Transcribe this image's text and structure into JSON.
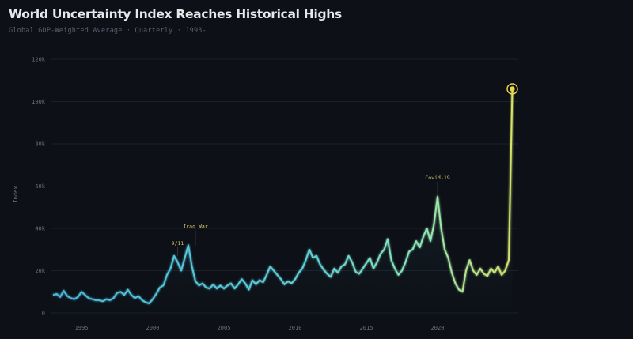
{
  "header": {
    "title": "World Uncertainty Index Reaches Historical Highs",
    "subtitle": "Global GDP-Weighted Average · Quarterly · 1993-"
  },
  "colors": {
    "background": "#0d1017",
    "grid": "#1c2029",
    "line_start": "#4fc3e0",
    "line_mid": "#7fe0c0",
    "line_end": "#d4e06a",
    "highlight": "#e8d84a",
    "annotation": "#d9c96a"
  },
  "chart_data": {
    "type": "line",
    "title": "World Uncertainty Index Reaches Historical Highs",
    "subtitle": "Global GDP-Weighted Average · Quarterly · 1993-",
    "xlabel": "",
    "ylabel": "Index",
    "ylim": [
      0,
      120000
    ],
    "xlim": [
      1993,
      2025.5
    ],
    "grid": true,
    "legend": null,
    "yticks": [
      {
        "value": 0,
        "label": "0"
      },
      {
        "value": 20000,
        "label": "20k"
      },
      {
        "value": 40000,
        "label": "40k"
      },
      {
        "value": 60000,
        "label": "60k"
      },
      {
        "value": 80000,
        "label": "80k"
      },
      {
        "value": 100000,
        "label": "100k"
      },
      {
        "value": 120000,
        "label": "120k"
      }
    ],
    "xticks": [
      {
        "value": 1995,
        "label": "1995"
      },
      {
        "value": 2000,
        "label": "2000"
      },
      {
        "value": 2005,
        "label": "2005"
      },
      {
        "value": 2010,
        "label": "2010"
      },
      {
        "value": 2015,
        "label": "2015"
      },
      {
        "value": 2020,
        "label": "2020"
      }
    ],
    "annotations": [
      {
        "label": "9/11",
        "x": 2001.75,
        "y": 27000
      },
      {
        "label": "Iraq War",
        "x": 2003.0,
        "y": 32000
      },
      {
        "label": "Covid-19",
        "x": 2020.0,
        "y": 55000
      }
    ],
    "highlight_point": {
      "x": 2025.25,
      "y": 106000
    },
    "series": [
      {
        "name": "World Uncertainty Index",
        "x": [
          1993.0,
          1993.25,
          1993.5,
          1993.75,
          1994.0,
          1994.25,
          1994.5,
          1994.75,
          1995.0,
          1995.25,
          1995.5,
          1995.75,
          1996.0,
          1996.25,
          1996.5,
          1996.75,
          1997.0,
          1997.25,
          1997.5,
          1997.75,
          1998.0,
          1998.25,
          1998.5,
          1998.75,
          1999.0,
          1999.25,
          1999.5,
          1999.75,
          2000.0,
          2000.25,
          2000.5,
          2000.75,
          2001.0,
          2001.25,
          2001.5,
          2001.75,
          2002.0,
          2002.25,
          2002.5,
          2002.75,
          2003.0,
          2003.25,
          2003.5,
          2003.75,
          2004.0,
          2004.25,
          2004.5,
          2004.75,
          2005.0,
          2005.25,
          2005.5,
          2005.75,
          2006.0,
          2006.25,
          2006.5,
          2006.75,
          2007.0,
          2007.25,
          2007.5,
          2007.75,
          2008.0,
          2008.25,
          2008.5,
          2008.75,
          2009.0,
          2009.25,
          2009.5,
          2009.75,
          2010.0,
          2010.25,
          2010.5,
          2010.75,
          2011.0,
          2011.25,
          2011.5,
          2011.75,
          2012.0,
          2012.25,
          2012.5,
          2012.75,
          2013.0,
          2013.25,
          2013.5,
          2013.75,
          2014.0,
          2014.25,
          2014.5,
          2014.75,
          2015.0,
          2015.25,
          2015.5,
          2015.75,
          2016.0,
          2016.25,
          2016.5,
          2016.75,
          2017.0,
          2017.25,
          2017.5,
          2017.75,
          2018.0,
          2018.25,
          2018.5,
          2018.75,
          2019.0,
          2019.25,
          2019.5,
          2019.75,
          2020.0,
          2020.25,
          2020.5,
          2020.75,
          2021.0,
          2021.25,
          2021.5,
          2021.75,
          2022.0,
          2022.25,
          2022.5,
          2022.75,
          2023.0,
          2023.25,
          2023.5,
          2023.75,
          2024.0,
          2024.25,
          2024.5,
          2024.75,
          2025.0,
          2025.25
        ],
        "values": [
          8500,
          9000,
          7500,
          10500,
          8000,
          7000,
          6500,
          7500,
          10000,
          8500,
          7000,
          6500,
          6000,
          6000,
          5500,
          6500,
          6000,
          7000,
          9500,
          10000,
          8500,
          11000,
          8500,
          7000,
          8000,
          6000,
          5000,
          4500,
          6500,
          9000,
          12000,
          13000,
          18000,
          21000,
          27000,
          24000,
          20000,
          26000,
          32000,
          22000,
          15000,
          13000,
          14000,
          12000,
          11500,
          13500,
          11500,
          13000,
          11500,
          13000,
          14000,
          11500,
          13500,
          16000,
          14000,
          11000,
          15500,
          13500,
          15500,
          14500,
          18000,
          22000,
          20000,
          18000,
          16000,
          13500,
          15000,
          14000,
          16000,
          19000,
          21000,
          25000,
          30000,
          26000,
          27000,
          23000,
          20500,
          18500,
          17000,
          21000,
          19000,
          22000,
          23000,
          27000,
          24000,
          19500,
          18500,
          21000,
          23500,
          26000,
          21000,
          24000,
          28000,
          30000,
          35000,
          25000,
          21000,
          18000,
          20000,
          24000,
          29000,
          30000,
          34000,
          31000,
          36000,
          40000,
          34000,
          42000,
          55000,
          40000,
          30000,
          26000,
          19000,
          14000,
          11000,
          10000,
          20000,
          25000,
          20000,
          18000,
          21000,
          18500,
          17500,
          21000,
          19000,
          22000,
          18000,
          20000,
          25000,
          106000
        ]
      }
    ]
  },
  "axis": {
    "y_title": "Index"
  }
}
